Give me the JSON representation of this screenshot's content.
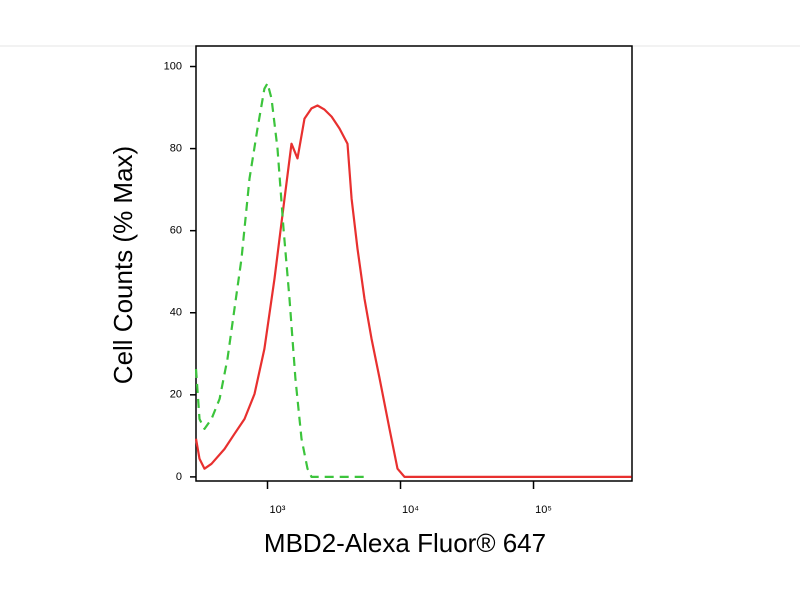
{
  "chart_data": {
    "type": "line",
    "x_label": "MBD2-Alexa Fluor® 647",
    "y_label": "Cell Counts (% Max)",
    "xscale": "log",
    "xlim": [
      290,
      550000
    ],
    "ylim": [
      -1,
      105
    ],
    "xticks": [
      {
        "value": 1000,
        "label": "10³"
      },
      {
        "value": 10000,
        "label": "10⁴"
      },
      {
        "value": 100000,
        "label": "10⁵"
      }
    ],
    "yticks": [
      0,
      20,
      40,
      60,
      80,
      100
    ],
    "grid": false,
    "series": [
      {
        "color": "#e8302f",
        "dashed": false,
        "x": [
          290,
          308,
          336,
          379,
          475,
          565,
          672,
          798,
          948,
          1129,
          1342,
          1515,
          1681,
          1898,
          2142,
          2376,
          2684,
          3031,
          3478,
          3996,
          4285,
          4753,
          5358,
          6050,
          6950,
          8260,
          9490,
          10720,
          13900,
          545000
        ],
        "values": [
          9.3,
          4.4,
          2,
          3.2,
          6.8,
          10.5,
          14.1,
          20.2,
          31.2,
          48.3,
          67.8,
          81.2,
          77.6,
          87.3,
          89.8,
          90.5,
          89.5,
          87.8,
          84.9,
          81.2,
          67.8,
          55.6,
          43.4,
          33.7,
          24.1,
          11.7,
          2,
          0,
          0,
          0
        ]
      },
      {
        "color": "#3cc43c",
        "dashed": true,
        "x": [
          290,
          308,
          336,
          379,
          436,
          500,
          565,
          637,
          732,
          841,
          948,
          1000,
          1072,
          1189,
          1319,
          1464,
          1622,
          1800,
          2000,
          2140,
          2460,
          5800
        ],
        "values": [
          26.3,
          14.1,
          11.7,
          14.1,
          19,
          28.8,
          41,
          53.2,
          72.7,
          84.9,
          94.6,
          95.9,
          92.2,
          80,
          60.5,
          43.4,
          24,
          9.3,
          2,
          0,
          0,
          0
        ]
      }
    ]
  }
}
